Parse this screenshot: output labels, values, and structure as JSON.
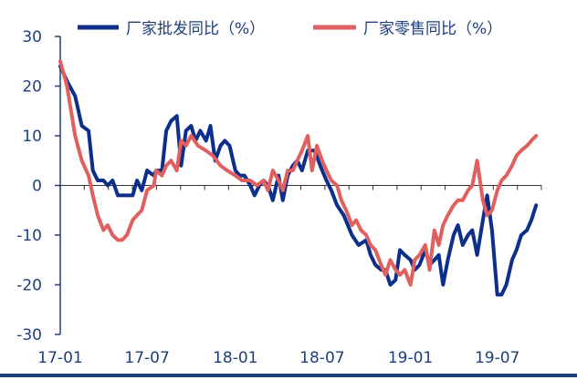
{
  "chart_data": {
    "type": "line",
    "title": "",
    "xlabel": "",
    "ylabel": "",
    "ylim": [
      -30,
      30
    ],
    "yticks": [
      30,
      20,
      10,
      0,
      -10,
      -20,
      -30
    ],
    "xlim": [
      "2017-01",
      "2019-10"
    ],
    "xtick_labels": [
      "17-01",
      "17-07",
      "18-01",
      "18-07",
      "19-01",
      "19-07"
    ],
    "grid": false,
    "legend_position": "top",
    "series": [
      {
        "name": "厂家批发同比（%）",
        "color": "#0d2f8c",
        "points": [
          [
            "2017-01-01",
            24
          ],
          [
            "2017-01-15",
            21
          ],
          [
            "2017-02-01",
            18
          ],
          [
            "2017-02-15",
            12
          ],
          [
            "2017-03-01",
            11
          ],
          [
            "2017-03-10",
            3
          ],
          [
            "2017-03-20",
            1
          ],
          [
            "2017-04-01",
            1
          ],
          [
            "2017-04-10",
            0
          ],
          [
            "2017-04-20",
            1
          ],
          [
            "2017-05-01",
            -2
          ],
          [
            "2017-05-20",
            -2
          ],
          [
            "2017-06-01",
            -2
          ],
          [
            "2017-06-10",
            1
          ],
          [
            "2017-06-20",
            -1
          ],
          [
            "2017-07-01",
            3
          ],
          [
            "2017-07-15",
            2
          ],
          [
            "2017-07-20",
            3
          ],
          [
            "2017-08-01",
            3
          ],
          [
            "2017-08-10",
            11
          ],
          [
            "2017-08-20",
            13
          ],
          [
            "2017-09-01",
            14
          ],
          [
            "2017-09-10",
            4
          ],
          [
            "2017-09-20",
            11
          ],
          [
            "2017-10-01",
            12
          ],
          [
            "2017-10-10",
            9
          ],
          [
            "2017-10-20",
            11
          ],
          [
            "2017-11-01",
            9
          ],
          [
            "2017-11-10",
            12
          ],
          [
            "2017-11-20",
            5
          ],
          [
            "2017-12-01",
            8
          ],
          [
            "2017-12-10",
            9
          ],
          [
            "2017-12-20",
            8
          ],
          [
            "2018-01-01",
            3
          ],
          [
            "2018-01-10",
            2
          ],
          [
            "2018-01-20",
            2
          ],
          [
            "2018-02-01",
            0
          ],
          [
            "2018-02-10",
            -2
          ],
          [
            "2018-02-20",
            0
          ],
          [
            "2018-03-01",
            1
          ],
          [
            "2018-03-10",
            0
          ],
          [
            "2018-03-20",
            -3
          ],
          [
            "2018-04-01",
            2
          ],
          [
            "2018-04-10",
            -3
          ],
          [
            "2018-04-20",
            2
          ],
          [
            "2018-05-01",
            4
          ],
          [
            "2018-05-10",
            5
          ],
          [
            "2018-05-20",
            3
          ],
          [
            "2018-06-01",
            7
          ],
          [
            "2018-06-15",
            7
          ],
          [
            "2018-07-01",
            3
          ],
          [
            "2018-07-10",
            1
          ],
          [
            "2018-07-20",
            -1
          ],
          [
            "2018-08-01",
            -4
          ],
          [
            "2018-08-15",
            -6
          ],
          [
            "2018-09-01",
            -10
          ],
          [
            "2018-09-15",
            -12
          ],
          [
            "2018-10-01",
            -11
          ],
          [
            "2018-10-10",
            -14
          ],
          [
            "2018-10-20",
            -16
          ],
          [
            "2018-11-01",
            -17
          ],
          [
            "2018-11-10",
            -17
          ],
          [
            "2018-11-20",
            -20
          ],
          [
            "2018-12-01",
            -19
          ],
          [
            "2018-12-10",
            -13
          ],
          [
            "2018-12-20",
            -14
          ],
          [
            "2019-01-01",
            -15
          ],
          [
            "2019-01-10",
            -17
          ],
          [
            "2019-01-20",
            -16
          ],
          [
            "2019-02-01",
            -13
          ],
          [
            "2019-02-10",
            -16
          ],
          [
            "2019-02-20",
            -15
          ],
          [
            "2019-03-01",
            -14
          ],
          [
            "2019-03-10",
            -20
          ],
          [
            "2019-03-20",
            -15
          ],
          [
            "2019-04-01",
            -10
          ],
          [
            "2019-04-10",
            -8
          ],
          [
            "2019-04-20",
            -12
          ],
          [
            "2019-05-01",
            -10
          ],
          [
            "2019-05-10",
            -9
          ],
          [
            "2019-05-20",
            -14
          ],
          [
            "2019-06-01",
            -7
          ],
          [
            "2019-06-10",
            -2
          ],
          [
            "2019-06-20",
            -9
          ],
          [
            "2019-07-01",
            -22
          ],
          [
            "2019-07-10",
            -22
          ],
          [
            "2019-07-20",
            -20
          ],
          [
            "2019-08-01",
            -15
          ],
          [
            "2019-08-10",
            -13
          ],
          [
            "2019-08-20",
            -10
          ],
          [
            "2019-09-01",
            -9
          ],
          [
            "2019-09-10",
            -7
          ],
          [
            "2019-09-20",
            -4
          ]
        ]
      },
      {
        "name": "厂家零售同比（%）",
        "color": "#e0605f",
        "points": [
          [
            "2017-01-01",
            25
          ],
          [
            "2017-01-15",
            20
          ],
          [
            "2017-02-01",
            10
          ],
          [
            "2017-02-15",
            5
          ],
          [
            "2017-03-01",
            2
          ],
          [
            "2017-03-10",
            -2
          ],
          [
            "2017-03-20",
            -6
          ],
          [
            "2017-04-01",
            -9
          ],
          [
            "2017-04-10",
            -8
          ],
          [
            "2017-04-20",
            -10
          ],
          [
            "2017-05-01",
            -11
          ],
          [
            "2017-05-10",
            -11
          ],
          [
            "2017-05-20",
            -10
          ],
          [
            "2017-06-01",
            -7
          ],
          [
            "2017-06-10",
            -6
          ],
          [
            "2017-06-20",
            -5
          ],
          [
            "2017-07-01",
            -1
          ],
          [
            "2017-07-15",
            0
          ],
          [
            "2017-07-20",
            3
          ],
          [
            "2017-08-01",
            2
          ],
          [
            "2017-08-10",
            4
          ],
          [
            "2017-08-20",
            5
          ],
          [
            "2017-09-01",
            3
          ],
          [
            "2017-09-10",
            9
          ],
          [
            "2017-09-20",
            8
          ],
          [
            "2017-10-01",
            10
          ],
          [
            "2017-10-15",
            8
          ],
          [
            "2017-11-01",
            7
          ],
          [
            "2017-11-15",
            6
          ],
          [
            "2017-12-01",
            4
          ],
          [
            "2017-12-15",
            3
          ],
          [
            "2018-01-01",
            2
          ],
          [
            "2018-01-15",
            1
          ],
          [
            "2018-02-01",
            1
          ],
          [
            "2018-02-15",
            0
          ],
          [
            "2018-03-01",
            1
          ],
          [
            "2018-03-10",
            -1
          ],
          [
            "2018-03-20",
            3
          ],
          [
            "2018-04-01",
            1
          ],
          [
            "2018-04-10",
            -1
          ],
          [
            "2018-04-20",
            3
          ],
          [
            "2018-05-01",
            3
          ],
          [
            "2018-05-10",
            5
          ],
          [
            "2018-05-20",
            7
          ],
          [
            "2018-06-01",
            10
          ],
          [
            "2018-06-10",
            3
          ],
          [
            "2018-06-20",
            8
          ],
          [
            "2018-07-01",
            5
          ],
          [
            "2018-07-10",
            3
          ],
          [
            "2018-07-20",
            1
          ],
          [
            "2018-08-01",
            0
          ],
          [
            "2018-08-10",
            -3
          ],
          [
            "2018-08-20",
            -5
          ],
          [
            "2018-09-01",
            -8
          ],
          [
            "2018-09-10",
            -7
          ],
          [
            "2018-09-20",
            -9
          ],
          [
            "2018-10-01",
            -10
          ],
          [
            "2018-10-10",
            -12
          ],
          [
            "2018-10-20",
            -13
          ],
          [
            "2018-11-01",
            -16
          ],
          [
            "2018-11-10",
            -18
          ],
          [
            "2018-11-20",
            -15
          ],
          [
            "2018-12-01",
            -17
          ],
          [
            "2018-12-10",
            -18
          ],
          [
            "2018-12-20",
            -17
          ],
          [
            "2019-01-01",
            -20
          ],
          [
            "2019-01-10",
            -15
          ],
          [
            "2019-01-20",
            -14
          ],
          [
            "2019-02-01",
            -12
          ],
          [
            "2019-02-10",
            -17
          ],
          [
            "2019-02-20",
            -9
          ],
          [
            "2019-03-01",
            -12
          ],
          [
            "2019-03-10",
            -8
          ],
          [
            "2019-03-20",
            -6
          ],
          [
            "2019-04-01",
            -4
          ],
          [
            "2019-04-10",
            -3
          ],
          [
            "2019-04-20",
            -3
          ],
          [
            "2019-05-01",
            -1
          ],
          [
            "2019-05-10",
            0
          ],
          [
            "2019-05-20",
            5
          ],
          [
            "2019-06-01",
            -3
          ],
          [
            "2019-06-10",
            -6
          ],
          [
            "2019-06-20",
            -5
          ],
          [
            "2019-07-01",
            -1
          ],
          [
            "2019-07-10",
            1
          ],
          [
            "2019-07-20",
            2
          ],
          [
            "2019-08-01",
            4
          ],
          [
            "2019-08-10",
            6
          ],
          [
            "2019-08-20",
            7
          ],
          [
            "2019-09-01",
            8
          ],
          [
            "2019-09-10",
            9
          ],
          [
            "2019-09-20",
            10
          ]
        ]
      }
    ]
  }
}
